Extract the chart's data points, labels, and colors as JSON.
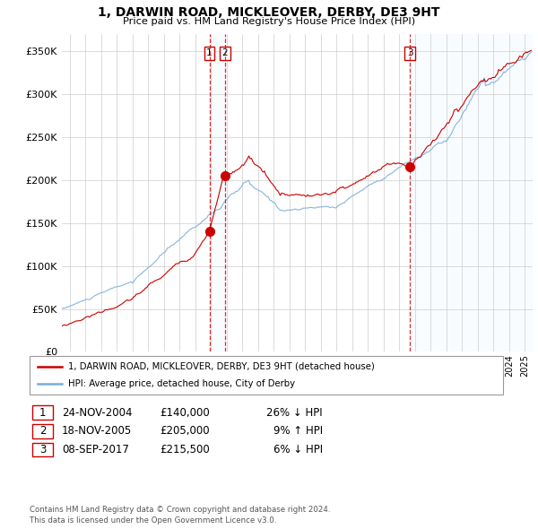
{
  "title": "1, DARWIN ROAD, MICKLEOVER, DERBY, DE3 9HT",
  "subtitle": "Price paid vs. HM Land Registry's House Price Index (HPI)",
  "ylabel_ticks": [
    "£0",
    "£50K",
    "£100K",
    "£150K",
    "£200K",
    "£250K",
    "£300K",
    "£350K"
  ],
  "ytick_values": [
    0,
    50000,
    100000,
    150000,
    200000,
    250000,
    300000,
    350000
  ],
  "ylim": [
    0,
    370000
  ],
  "xlim_start": 1995.5,
  "xlim_end": 2025.5,
  "sale_dates": [
    2004.9,
    2005.88,
    2017.69
  ],
  "sale_prices": [
    140000,
    205000,
    215500
  ],
  "sale_labels": [
    "1",
    "2",
    "3"
  ],
  "red_line_color": "#cc0000",
  "blue_line_color": "#7aaddb",
  "shade_color": "#ddeeff",
  "grid_color": "#cccccc",
  "bg_color": "#ffffff",
  "legend_line1": "1, DARWIN ROAD, MICKLEOVER, DERBY, DE3 9HT (detached house)",
  "legend_line2": "HPI: Average price, detached house, City of Derby",
  "table_rows": [
    {
      "num": "1",
      "date": "24-NOV-2004",
      "price": "£140,000",
      "hpi": "26% ↓ HPI"
    },
    {
      "num": "2",
      "date": "18-NOV-2005",
      "price": "£205,000",
      "hpi": "9% ↑ HPI"
    },
    {
      "num": "3",
      "date": "08-SEP-2017",
      "price": "£215,500",
      "hpi": "6% ↓ HPI"
    }
  ],
  "footnote": "Contains HM Land Registry data © Crown copyright and database right 2024.\nThis data is licensed under the Open Government Licence v3.0."
}
